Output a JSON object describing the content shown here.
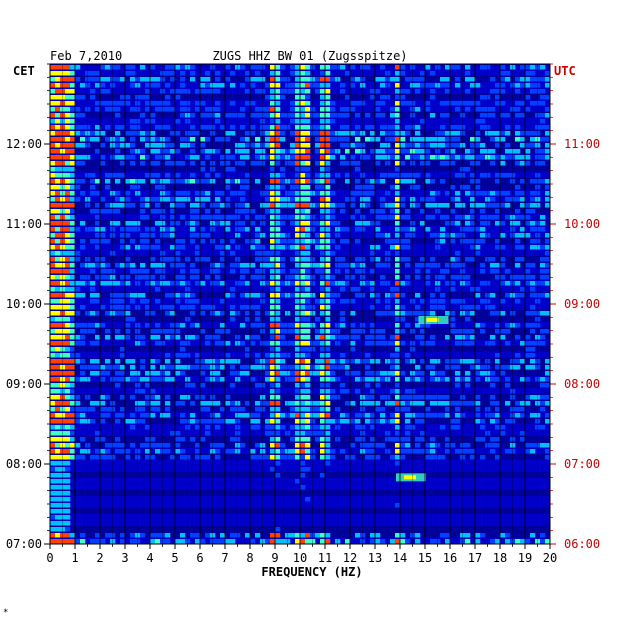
{
  "header": {
    "date": "Feb 7,2010",
    "station": "ZUGS HHZ BW 01 (Zugsspitze)"
  },
  "colors": {
    "background": "#ffffff",
    "plot_background": "#0000c8",
    "trace_dark": "#00009a",
    "left_axis": "#000000",
    "right_axis": "#cc0000",
    "palette": [
      "#0000b4",
      "#0040ff",
      "#00c0ff",
      "#40ffc0",
      "#ffff00",
      "#ff4000"
    ]
  },
  "corner_mark": "*",
  "chart_data": {
    "type": "heatmap",
    "title": "ZUGS HHZ BW 01 (Zugsspitze)",
    "xlabel": "FREQUENCY (HZ)",
    "xlim": [
      0,
      20
    ],
    "x_ticks": [
      "0",
      "1",
      "2",
      "3",
      "4",
      "5",
      "6",
      "7",
      "8",
      "9",
      "10",
      "11",
      "12",
      "13",
      "14",
      "15",
      "16",
      "17",
      "18",
      "19",
      "20"
    ],
    "left_axis": {
      "label": "CET",
      "ticks": [
        "12:00",
        "11:00",
        "10:00",
        "09:00",
        "08:00",
        "07:00"
      ]
    },
    "right_axis": {
      "label": "UTC",
      "ticks": [
        "11:00",
        "10:00",
        "09:00",
        "08:00",
        "07:00",
        "06:00"
      ]
    },
    "time_range_cet": [
      "07:00",
      "13:00"
    ],
    "time_range_utc": [
      "06:00",
      "12:00"
    ],
    "strong_bands_hz": [
      [
        0.1,
        0.9
      ],
      [
        8.9,
        9.2
      ],
      [
        9.9,
        10.4
      ],
      [
        10.8,
        11.2
      ],
      [
        13.8,
        14.1
      ]
    ],
    "event_hz": [
      {
        "hz": 15.3,
        "time_cet": "09:48",
        "label": ""
      },
      {
        "hz": 14.4,
        "time_cet": "07:50",
        "label": ""
      }
    ]
  }
}
